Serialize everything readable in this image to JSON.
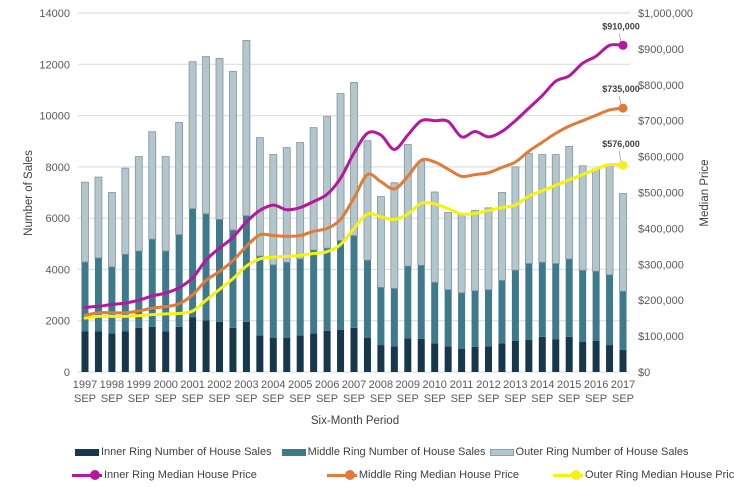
{
  "chart_data": {
    "type": "bar",
    "title": "",
    "xlabel": "Six-Month Period",
    "ylabel": "Number of Sales",
    "y2label": "Median Price",
    "ylim": [
      0,
      14000
    ],
    "y2lim": [
      0,
      1000000
    ],
    "grid": true,
    "legend_position": "bottom",
    "y_ticks": [
      "0",
      "2000",
      "4000",
      "6000",
      "8000",
      "10000",
      "12000",
      "14000"
    ],
    "y2_ticks": [
      "$0",
      "$100,000",
      "$200,000",
      "$300,000",
      "$400,000",
      "$500,000",
      "$600,000",
      "$700,000",
      "$800,000",
      "$900,000",
      "$1,000,000"
    ],
    "x_tick_labels": [
      [
        "1997",
        "SEP"
      ],
      [
        "1998",
        "SEP"
      ],
      [
        "1999",
        "SEP"
      ],
      [
        "2000",
        "SEP"
      ],
      [
        "2001",
        "SEP"
      ],
      [
        "2002",
        "SEP"
      ],
      [
        "2003",
        "SEP"
      ],
      [
        "2004",
        "SEP"
      ],
      [
        "2005",
        "SEP"
      ],
      [
        "2006",
        "SEP"
      ],
      [
        "2007",
        "SEP"
      ],
      [
        "2008",
        "SEP"
      ],
      [
        "2009",
        "SEP"
      ],
      [
        "2010",
        "SEP"
      ],
      [
        "2011",
        "SEP"
      ],
      [
        "2012",
        "SEP"
      ],
      [
        "2013",
        "SEP"
      ],
      [
        "2014",
        "SEP"
      ],
      [
        "2015",
        "SEP"
      ],
      [
        "2016",
        "SEP"
      ],
      [
        "2017",
        "SEP"
      ]
    ],
    "periods": [
      "1997 SEP",
      "1998 MAR",
      "1998 SEP",
      "1999 MAR",
      "1999 SEP",
      "2000 MAR",
      "2000 SEP",
      "2001 MAR",
      "2001 SEP",
      "2002 MAR",
      "2002 SEP",
      "2003 MAR",
      "2003 SEP",
      "2004 MAR",
      "2004 SEP",
      "2005 MAR",
      "2005 SEP",
      "2006 MAR",
      "2006 SEP",
      "2007 MAR",
      "2007 SEP",
      "2008 MAR",
      "2008 SEP",
      "2009 MAR",
      "2009 SEP",
      "2010 MAR",
      "2010 SEP",
      "2011 MAR",
      "2011 SEP",
      "2012 MAR",
      "2012 SEP",
      "2013 MAR",
      "2013 SEP",
      "2014 MAR",
      "2014 SEP",
      "2015 MAR",
      "2015 SEP",
      "2016 MAR",
      "2016 SEP",
      "2017 MAR",
      "2017 SEP"
    ],
    "bar_series": [
      {
        "name": "Inner Ring Number of House Sales",
        "color": "#17374b",
        "values": [
          1580,
          1580,
          1500,
          1580,
          1720,
          1760,
          1580,
          1760,
          2140,
          2010,
          1960,
          1720,
          1960,
          1420,
          1340,
          1340,
          1420,
          1510,
          1610,
          1650,
          1720,
          1340,
          1050,
          1000,
          1310,
          1290,
          1110,
          1000,
          910,
          980,
          1000,
          1110,
          1210,
          1250,
          1370,
          1280,
          1370,
          1170,
          1210,
          1050,
          870
        ]
      },
      {
        "name": "Middle Ring Number of House Sales",
        "color": "#3e7a8c",
        "values": [
          2710,
          2870,
          2600,
          3010,
          3000,
          3420,
          3140,
          3600,
          4230,
          4160,
          3990,
          3820,
          4140,
          3100,
          2840,
          2940,
          2990,
          3250,
          3220,
          3480,
          3600,
          3020,
          2250,
          2260,
          2820,
          2870,
          2390,
          2210,
          2180,
          2190,
          2210,
          2460,
          2760,
          2980,
          2910,
          2950,
          3040,
          2800,
          2720,
          2740,
          2280
        ]
      },
      {
        "name": "Outer Ring Number of House Sales",
        "color": "#b3c6cc",
        "values": [
          3110,
          3150,
          2900,
          3360,
          3680,
          4190,
          3680,
          4370,
          5730,
          6130,
          6280,
          6180,
          6830,
          4620,
          4300,
          4470,
          4540,
          4770,
          5130,
          5730,
          5970,
          4660,
          3540,
          4120,
          4740,
          4050,
          3520,
          3010,
          3080,
          3130,
          3190,
          3430,
          4030,
          4290,
          4200,
          4250,
          4390,
          4070,
          3990,
          4300,
          3810
        ]
      }
    ],
    "line_series": [
      {
        "name": "Inner Ring Median House Price",
        "color": "#b5179e",
        "values": [
          180000,
          183000,
          188000,
          192000,
          200000,
          212000,
          220000,
          235000,
          262000,
          312000,
          345000,
          375000,
          418000,
          450000,
          465000,
          452000,
          458000,
          475000,
          495000,
          540000,
          610000,
          665000,
          660000,
          620000,
          660000,
          700000,
          700000,
          698000,
          655000,
          670000,
          655000,
          670000,
          700000,
          735000,
          770000,
          810000,
          825000,
          860000,
          880000,
          910000,
          910000
        ],
        "end_label": "$910,000"
      },
      {
        "name": "Middle Ring Median House Price",
        "color": "#e07b39",
        "values": [
          158000,
          165000,
          165000,
          165000,
          170000,
          178000,
          182000,
          190000,
          215000,
          255000,
          280000,
          310000,
          350000,
          382000,
          380000,
          378000,
          380000,
          392000,
          400000,
          425000,
          485000,
          550000,
          530000,
          510000,
          545000,
          590000,
          585000,
          565000,
          545000,
          550000,
          555000,
          570000,
          585000,
          615000,
          640000,
          665000,
          685000,
          700000,
          715000,
          730000,
          735000
        ],
        "end_label": "$735,000"
      },
      {
        "name": "Outer Ring Median House Price",
        "color": "#f5f20f",
        "values": [
          150000,
          155000,
          155000,
          155000,
          157000,
          160000,
          162000,
          163000,
          170000,
          200000,
          230000,
          260000,
          295000,
          315000,
          320000,
          322000,
          325000,
          330000,
          335000,
          355000,
          400000,
          440000,
          432000,
          425000,
          440000,
          470000,
          468000,
          455000,
          440000,
          442000,
          450000,
          458000,
          465000,
          490000,
          505000,
          520000,
          535000,
          550000,
          565000,
          578000,
          576000
        ],
        "end_label": "$576,000"
      }
    ]
  }
}
